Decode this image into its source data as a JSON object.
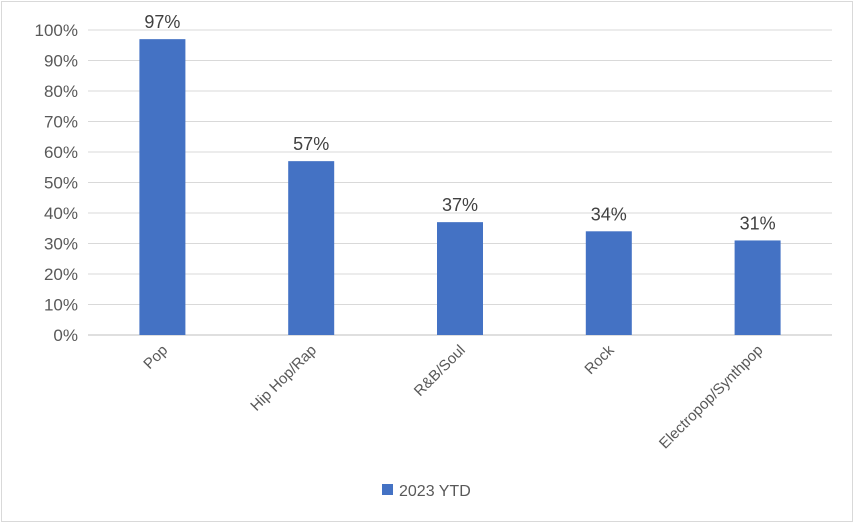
{
  "chart_data": {
    "type": "bar",
    "categories": [
      "Pop",
      "Hip Hop/Rap",
      "R&B/Soul",
      "Rock",
      "Electropop/Synthpop"
    ],
    "series": [
      {
        "name": "2023 YTD",
        "values": [
          97,
          57,
          37,
          34,
          31
        ],
        "color": "#4472c4"
      }
    ],
    "data_labels": [
      "97%",
      "57%",
      "37%",
      "34%",
      "31%"
    ],
    "y_ticks": [
      "0%",
      "10%",
      "20%",
      "30%",
      "40%",
      "50%",
      "60%",
      "70%",
      "80%",
      "90%",
      "100%"
    ],
    "ylim": [
      0,
      100
    ],
    "grid": true,
    "legend_position": "bottom",
    "title": "",
    "xlabel": "",
    "ylabel": ""
  }
}
